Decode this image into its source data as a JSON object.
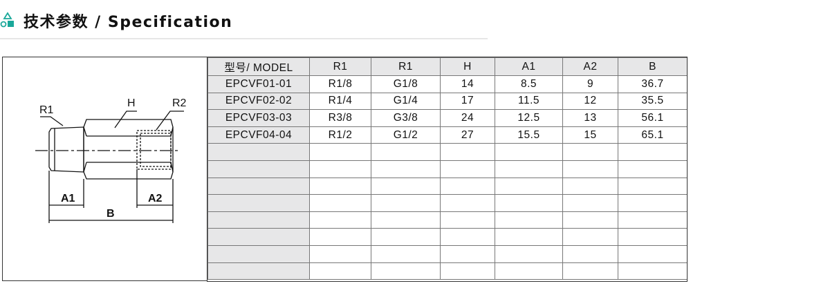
{
  "header": {
    "title": "技术参数 / Specification",
    "icon": "shapes-icon",
    "accent": "#1aa89a"
  },
  "drawing": {
    "labels": {
      "r1": "R1",
      "h": "H",
      "r2": "R2",
      "a1": "A1",
      "a2": "A2",
      "b": "B"
    }
  },
  "table": {
    "columns": [
      "型号/ MODEL",
      "R1",
      "R1",
      "H",
      "A1",
      "A2",
      "B"
    ],
    "rows": [
      [
        "EPCVF01-01",
        "R1/8",
        "G1/8",
        "14",
        "8.5",
        "9",
        "36.7"
      ],
      [
        "EPCVF02-02",
        "R1/4",
        "G1/4",
        "17",
        "11.5",
        "12",
        "35.5"
      ],
      [
        "EPCVF03-03",
        "R3/8",
        "G3/8",
        "24",
        "12.5",
        "13",
        "56.1"
      ],
      [
        "EPCVF04-04",
        "R1/2",
        "G1/2",
        "27",
        "15.5",
        "15",
        "65.1"
      ]
    ],
    "empty_rows": 8
  }
}
